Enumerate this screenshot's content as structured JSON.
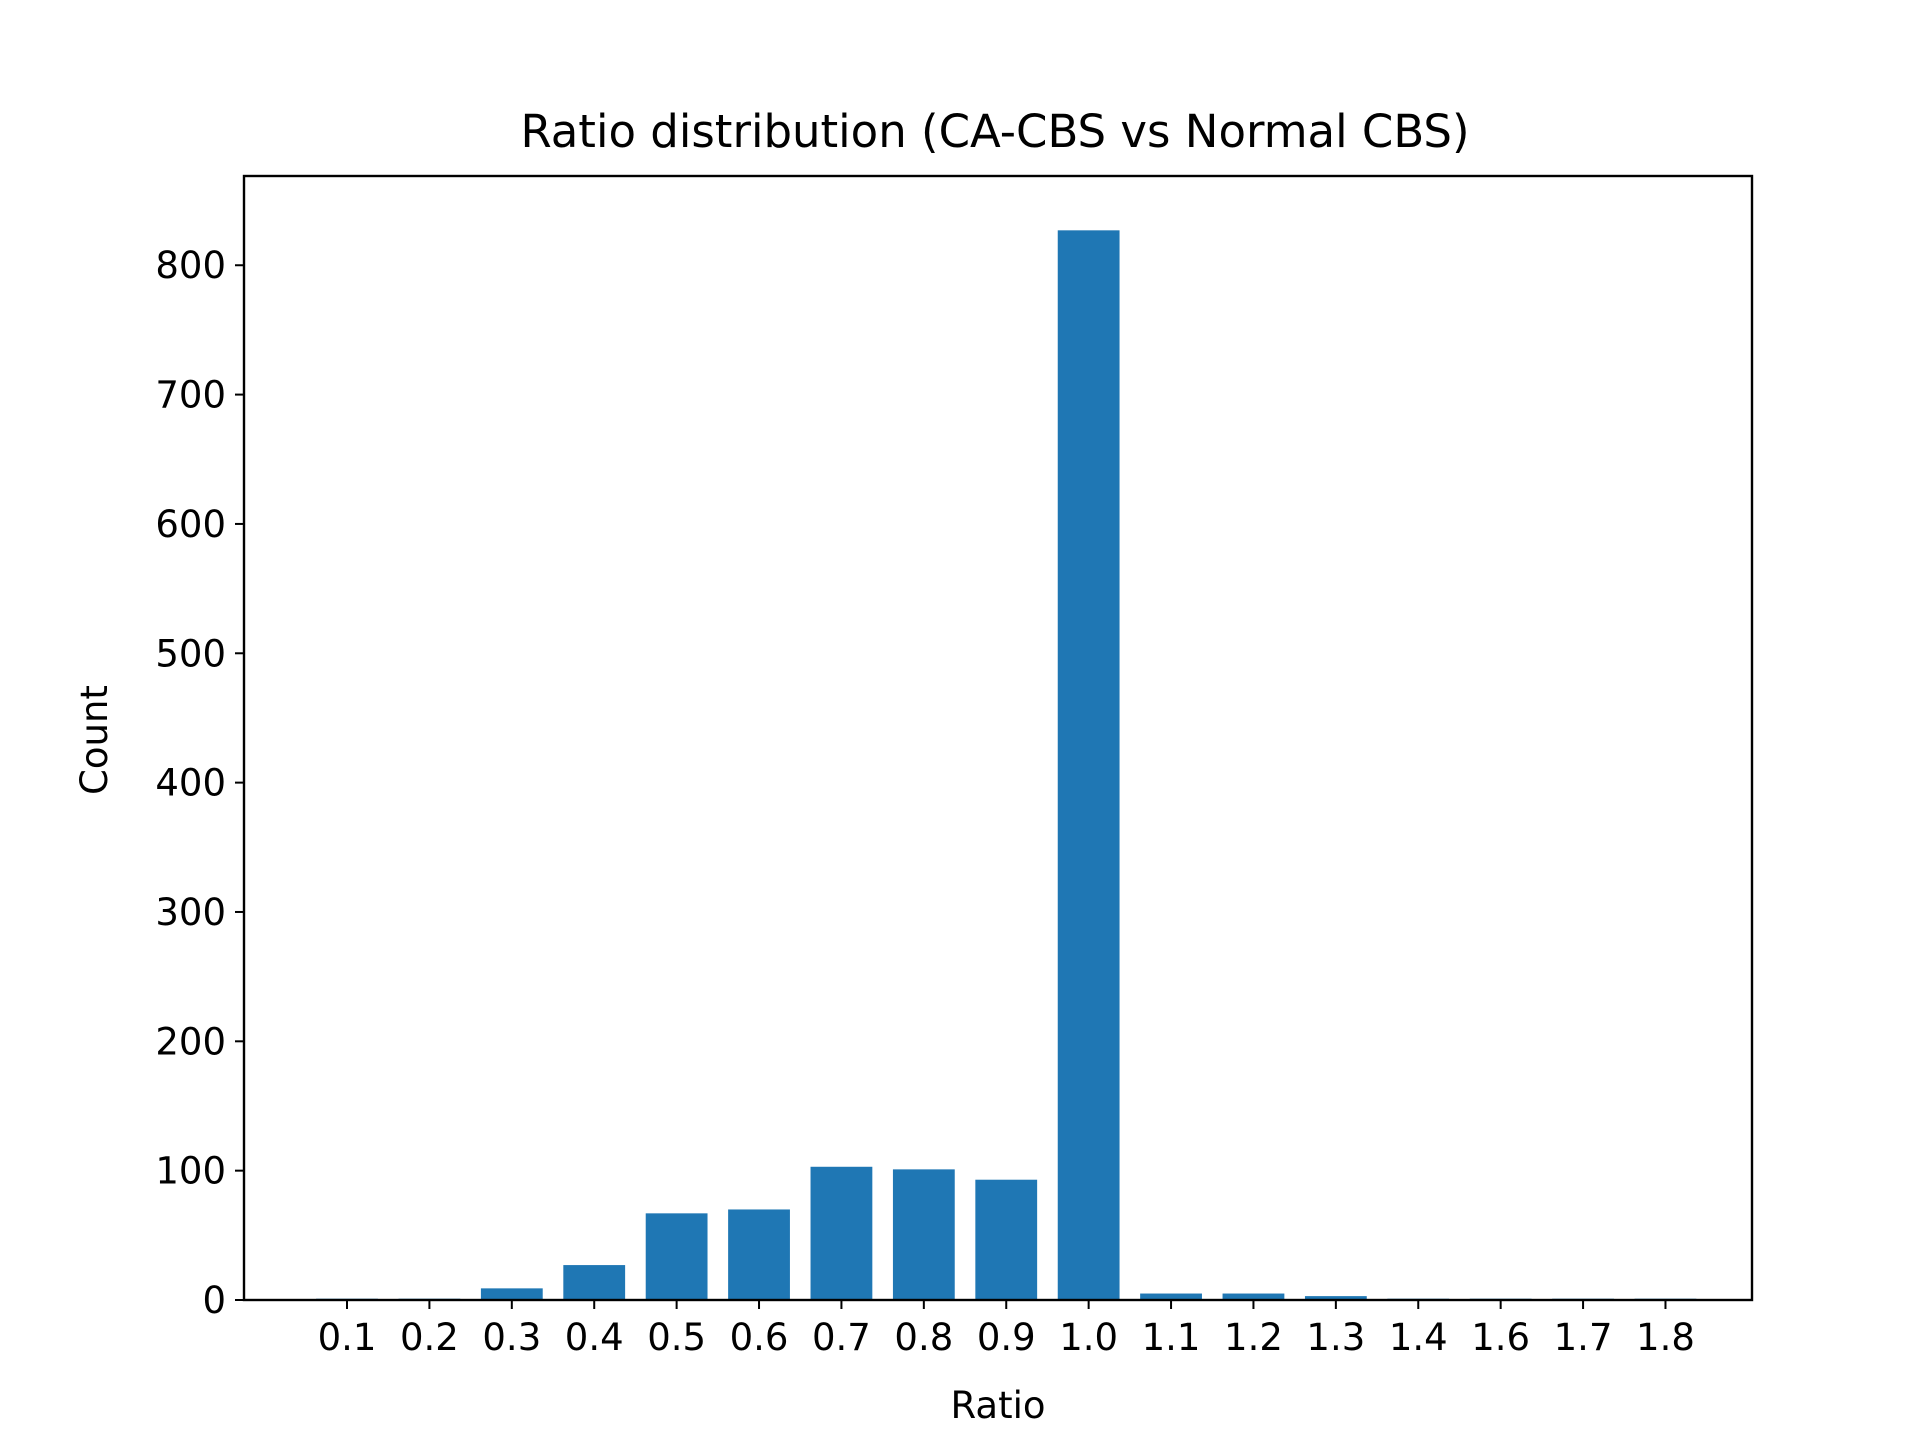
{
  "chart_data": {
    "type": "bar",
    "title": "Ratio distribution (CA-CBS vs Normal CBS)",
    "xlabel": "Ratio",
    "ylabel": "Count",
    "categories": [
      "0.1",
      "0.2",
      "0.3",
      "0.4",
      "0.5",
      "0.6",
      "0.7",
      "0.8",
      "0.9",
      "1.0",
      "1.1",
      "1.2",
      "1.3",
      "1.4",
      "1.6",
      "1.7",
      "1.8"
    ],
    "values": [
      1,
      1,
      9,
      27,
      67,
      70,
      103,
      101,
      93,
      827,
      5,
      5,
      3,
      1,
      1,
      1,
      1
    ],
    "yticks": [
      0,
      100,
      200,
      300,
      400,
      500,
      600,
      700,
      800
    ],
    "ylim": [
      0,
      869
    ],
    "grid": false,
    "legend": "none",
    "colors": {
      "bar": "#1f77b4",
      "axes": "#000000",
      "background": "#ffffff"
    }
  }
}
